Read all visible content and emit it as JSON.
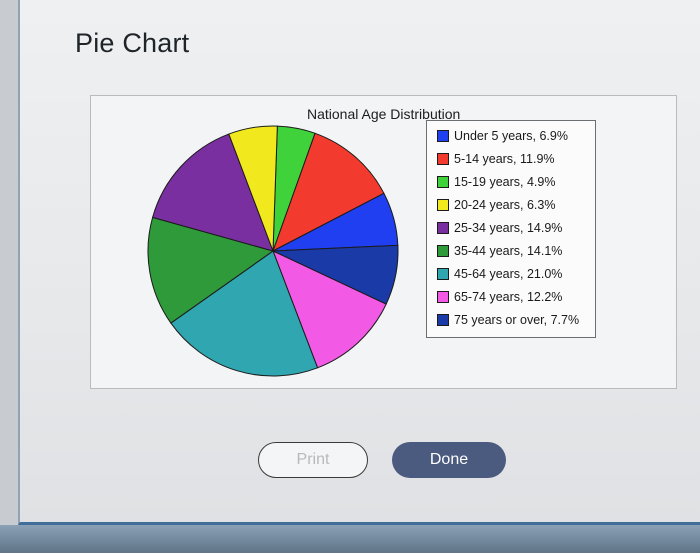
{
  "page": {
    "title": "Pie Chart"
  },
  "buttons": {
    "print_label": "Print",
    "done_label": "Done"
  },
  "chart_data": {
    "type": "pie",
    "title": "National Age Distribution",
    "legend_position": "right",
    "slices": [
      {
        "label": "Under 5 years, 6.9%",
        "value": 6.9,
        "color": "#1f3ff0"
      },
      {
        "label": "5-14 years, 11.9%",
        "value": 11.9,
        "color": "#f23a2e"
      },
      {
        "label": "15-19 years, 4.9%",
        "value": 4.9,
        "color": "#3fd23a"
      },
      {
        "label": "20-24 years, 6.3%",
        "value": 6.3,
        "color": "#f2e81e"
      },
      {
        "label": "25-34 years, 14.9%",
        "value": 14.9,
        "color": "#7a2fa0"
      },
      {
        "label": "35-44 years, 14.1%",
        "value": 14.1,
        "color": "#2f9a3a"
      },
      {
        "label": "45-64 years, 21.0%",
        "value": 21.0,
        "color": "#2fa6b0"
      },
      {
        "label": "65-74 years, 12.2%",
        "value": 12.2,
        "color": "#f25ae6"
      },
      {
        "label": "75 years or over, 7.7%",
        "value": 7.7,
        "color": "#1a3aa8"
      }
    ],
    "start_order_clockwise": [
      2,
      1,
      0,
      8,
      7,
      6,
      5,
      4,
      3
    ]
  }
}
